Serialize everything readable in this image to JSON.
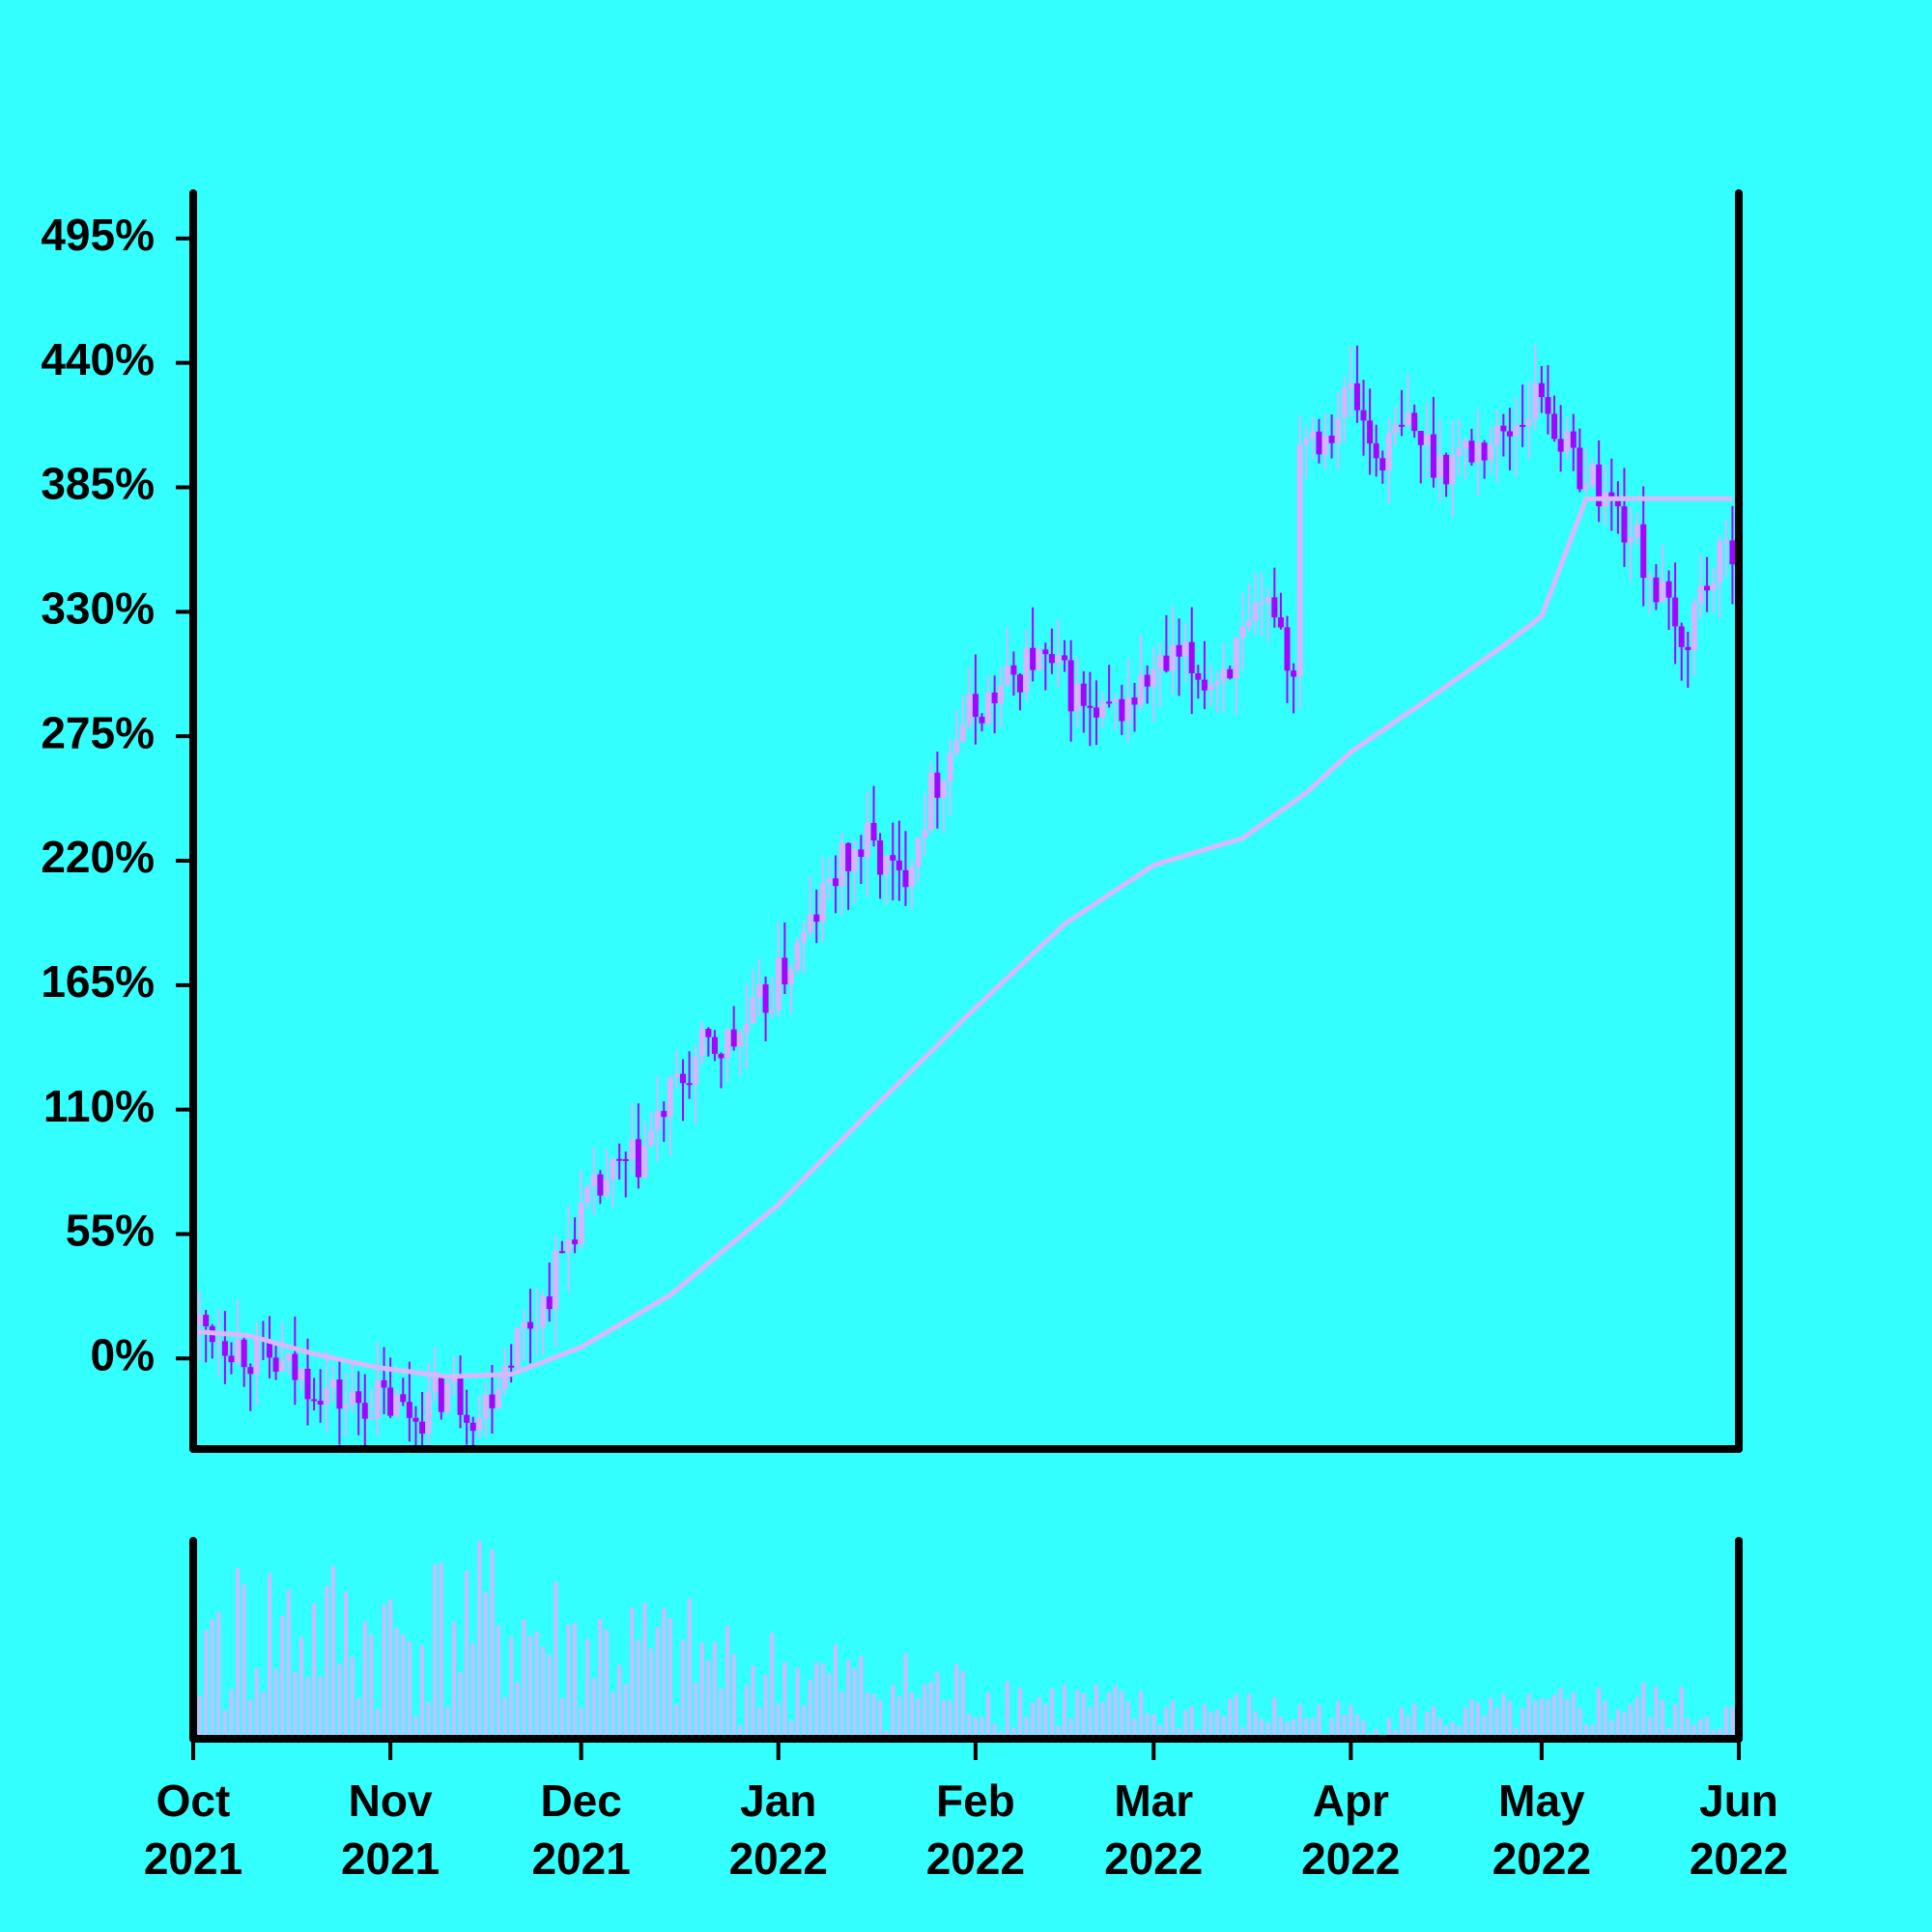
{
  "chart_data": {
    "type": "candlestick",
    "title": "",
    "xlabel": "",
    "ylabel": "",
    "x_range": [
      "2021-10-01",
      "2022-06-01"
    ],
    "ylim": [
      -40,
      515
    ],
    "y_unit": "%",
    "y_ticks": [
      {
        "value": 0,
        "label": "0%"
      },
      {
        "value": 55,
        "label": "55%"
      },
      {
        "value": 110,
        "label": "110%"
      },
      {
        "value": 165,
        "label": "165%"
      },
      {
        "value": 220,
        "label": "220%"
      },
      {
        "value": 275,
        "label": "275%"
      },
      {
        "value": 330,
        "label": "330%"
      },
      {
        "value": 385,
        "label": "385%"
      },
      {
        "value": 440,
        "label": "440%"
      },
      {
        "value": 495,
        "label": "495%"
      }
    ],
    "x_ticks": [
      {
        "date": "2021-10-01",
        "month": "Oct",
        "year": "2021"
      },
      {
        "date": "2021-11-01",
        "month": "Nov",
        "year": "2021"
      },
      {
        "date": "2021-12-01",
        "month": "Dec",
        "year": "2021"
      },
      {
        "date": "2022-01-01",
        "month": "Jan",
        "year": "2022"
      },
      {
        "date": "2022-02-01",
        "month": "Feb",
        "year": "2022"
      },
      {
        "date": "2022-03-01",
        "month": "Mar",
        "year": "2022"
      },
      {
        "date": "2022-04-01",
        "month": "Apr",
        "year": "2022"
      },
      {
        "date": "2022-05-01",
        "month": "May",
        "year": "2022"
      },
      {
        "date": "2022-06-01",
        "month": "Jun",
        "year": "2022"
      }
    ],
    "close_series": {
      "dates": [
        "2021-10-01",
        "2021-10-05",
        "2021-10-10",
        "2021-10-15",
        "2021-10-20",
        "2021-10-25",
        "2021-10-30",
        "2021-11-05",
        "2021-11-10",
        "2021-11-15",
        "2021-11-20",
        "2021-11-25",
        "2021-11-30",
        "2021-12-05",
        "2021-12-10",
        "2021-12-15",
        "2021-12-20",
        "2021-12-25",
        "2021-12-30",
        "2022-01-05",
        "2022-01-10",
        "2022-01-15",
        "2022-01-20",
        "2022-01-25",
        "2022-01-30",
        "2022-02-05",
        "2022-02-10",
        "2022-02-15",
        "2022-02-20",
        "2022-02-25",
        "2022-03-01",
        "2022-03-05",
        "2022-03-10",
        "2022-03-15",
        "2022-03-20",
        "2022-03-23",
        "2022-03-24",
        "2022-03-28",
        "2022-04-01",
        "2022-04-05",
        "2022-04-10",
        "2022-04-15",
        "2022-04-20",
        "2022-04-25",
        "2022-05-01",
        "2022-05-05",
        "2022-05-10",
        "2022-05-15",
        "2022-05-20",
        "2022-05-23",
        "2022-05-26",
        "2022-05-29",
        "2022-06-01"
      ],
      "values": [
        15,
        12,
        2,
        -5,
        -10,
        -20,
        -18,
        -25,
        -12,
        -25,
        5,
        25,
        60,
        78,
        88,
        115,
        135,
        140,
        158,
        185,
        215,
        228,
        210,
        250,
        282,
        295,
        310,
        300,
        280,
        290,
        302,
        308,
        300,
        315,
        335,
        300,
        412,
        410,
        428,
        398,
        412,
        396,
        402,
        408,
        428,
        400,
        385,
        365,
        335,
        312,
        340,
        350,
        368
      ]
    },
    "sma_series": {
      "dates": [
        "2021-10-01",
        "2021-10-10",
        "2021-10-20",
        "2021-10-30",
        "2021-11-10",
        "2021-11-20",
        "2021-12-01",
        "2021-12-15",
        "2022-01-01",
        "2022-01-15",
        "2022-02-01",
        "2022-02-15",
        "2022-03-01",
        "2022-03-15",
        "2022-03-25",
        "2022-04-01",
        "2022-04-15",
        "2022-04-25",
        "2022-05-01",
        "2022-05-08",
        "2022-05-15",
        "2022-05-22",
        "2022-06-01"
      ],
      "values": [
        12,
        10,
        2,
        -4,
        -8,
        -7,
        5,
        28,
        68,
        108,
        155,
        192,
        218,
        230,
        250,
        268,
        295,
        315,
        328,
        380,
        380,
        380,
        380
      ]
    },
    "volume": {
      "dates": [
        "2021-10-01",
        "2021-10-15",
        "2021-11-01",
        "2021-11-15",
        "2021-12-01",
        "2021-12-15",
        "2022-01-01",
        "2022-01-15",
        "2022-02-01",
        "2022-02-15",
        "2022-03-01",
        "2022-03-15",
        "2022-04-01",
        "2022-04-15",
        "2022-05-01",
        "2022-05-15",
        "2022-06-01"
      ],
      "values": [
        0.55,
        0.6,
        0.55,
        0.65,
        0.5,
        0.45,
        0.35,
        0.3,
        0.25,
        0.2,
        0.15,
        0.15,
        0.12,
        0.12,
        0.15,
        0.2,
        0.12
      ]
    },
    "grid": false,
    "legend": "none",
    "colors": {
      "background": "#33ffff",
      "candle_up": "#d9b3ff",
      "candle_down": "#aa00ff",
      "sma_line": "#d9b8ff",
      "volume_bar": "#ccbbff",
      "axis": "#000000"
    }
  }
}
